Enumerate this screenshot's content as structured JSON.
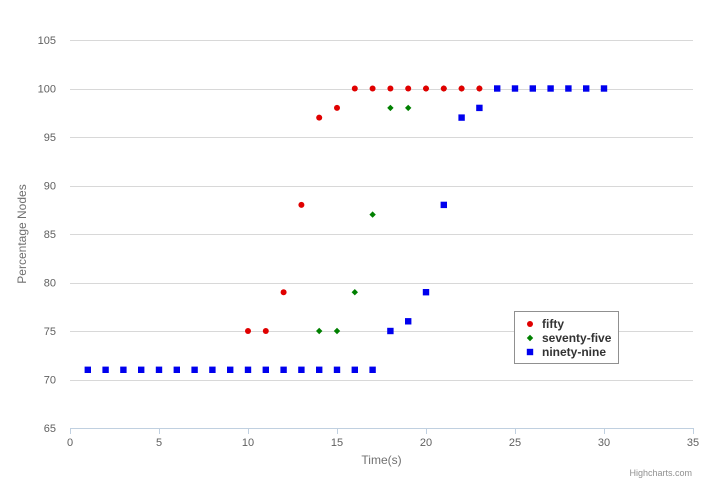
{
  "chart_data": {
    "type": "scatter",
    "xlabel": "Time(s)",
    "ylabel": "Percentage Nodes",
    "xlim": [
      0,
      35
    ],
    "ylim": [
      65,
      105
    ],
    "x_ticks": [
      0,
      5,
      10,
      15,
      20,
      25,
      30,
      35
    ],
    "y_ticks": [
      65,
      70,
      75,
      80,
      85,
      90,
      95,
      100,
      105
    ],
    "grid": "horizontal",
    "legend_placement": "bottom-right",
    "credits": "Highcharts.com",
    "series": [
      {
        "name": "fifty",
        "color": "#e00000",
        "marker": "circle",
        "x": [
          10,
          11,
          12,
          13,
          14,
          15,
          16,
          17,
          18,
          19,
          20,
          21,
          22,
          23
        ],
        "y": [
          75,
          75,
          79,
          88,
          97,
          98,
          100,
          100,
          100,
          100,
          100,
          100,
          100,
          100
        ]
      },
      {
        "name": "seventy-five",
        "color": "#008000",
        "marker": "diamond",
        "x": [
          14,
          15,
          16,
          17,
          18,
          19,
          20,
          21,
          22,
          23
        ],
        "y": [
          75,
          75,
          79,
          87,
          98,
          98,
          100,
          100,
          100,
          100
        ]
      },
      {
        "name": "ninety-nine",
        "color": "#0000ee",
        "marker": "square",
        "x": [
          1,
          2,
          3,
          4,
          5,
          6,
          7,
          8,
          9,
          10,
          11,
          12,
          13,
          14,
          15,
          16,
          17,
          18,
          19,
          20,
          21,
          22,
          23,
          24,
          25,
          26,
          27,
          28,
          29,
          30
        ],
        "y": [
          71,
          71,
          71,
          71,
          71,
          71,
          71,
          71,
          71,
          71,
          71,
          71,
          71,
          71,
          71,
          71,
          71,
          75,
          76,
          79,
          88,
          97,
          98,
          100,
          100,
          100,
          100,
          100,
          100,
          100
        ]
      }
    ]
  }
}
